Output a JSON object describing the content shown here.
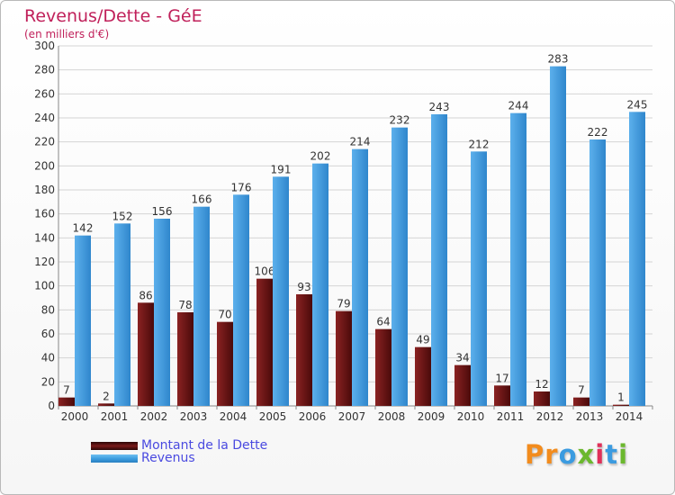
{
  "chart_data": {
    "type": "bar",
    "title": "Revenus/Dette - GéE",
    "subtitle": "(en milliers d'€)",
    "categories": [
      "2000",
      "2001",
      "2002",
      "2003",
      "2004",
      "2005",
      "2006",
      "2007",
      "2008",
      "2009",
      "2010",
      "2011",
      "2012",
      "2013",
      "2014"
    ],
    "series": [
      {
        "name": "Montant de la Dette",
        "color": "#7a1a1a",
        "values": [
          7,
          2,
          86,
          78,
          70,
          106,
          93,
          79,
          64,
          49,
          34,
          17,
          12,
          7,
          1
        ]
      },
      {
        "name": "Revenus",
        "color": "#3d9ee0",
        "values": [
          142,
          152,
          156,
          166,
          176,
          191,
          202,
          214,
          232,
          243,
          212,
          244,
          283,
          222,
          245
        ]
      }
    ],
    "ylim": [
      0,
      300
    ],
    "yticks": [
      0,
      20,
      40,
      60,
      80,
      100,
      120,
      140,
      160,
      180,
      200,
      220,
      240,
      260,
      280,
      300
    ],
    "grid": true,
    "legend": "bottom-left"
  },
  "colors": {
    "title": "#c0205a",
    "legend_text": "#4a4ae0"
  },
  "logo": {
    "text": "Proxiti",
    "letters": [
      "P",
      "r",
      "o",
      "x",
      "i",
      "t",
      "i"
    ],
    "colors": [
      "#f28c1e",
      "#f28c1e",
      "#3b9be0",
      "#6bb82e",
      "#e0305a",
      "#3b9be0",
      "#6bb82e"
    ]
  }
}
